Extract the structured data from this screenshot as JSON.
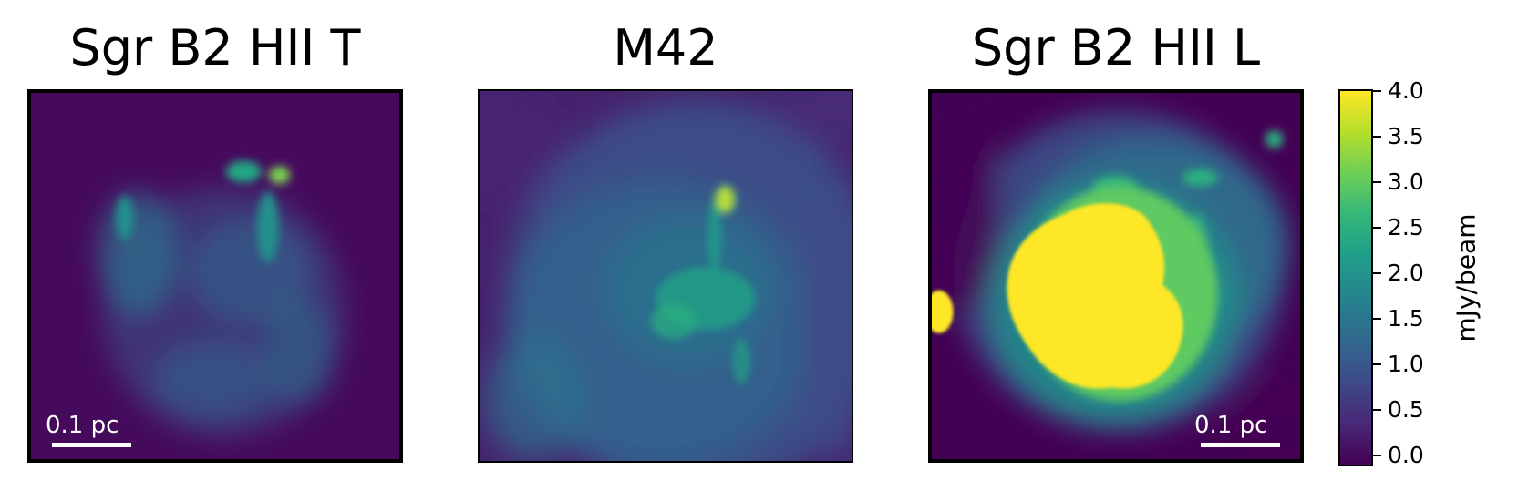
{
  "panels": [
    {
      "title": "Sgr B2 HII T",
      "scalebar": "0.1 pc"
    },
    {
      "title": "M42",
      "scalebar": ""
    },
    {
      "title": "Sgr B2 HII L",
      "scalebar": "0.1 pc"
    }
  ],
  "colorbar": {
    "label": "mJy/beam",
    "colormap": "viridis",
    "range": [
      -0.1,
      4.0
    ],
    "ticks": [
      "4.0",
      "3.5",
      "3.0",
      "2.5",
      "2.0",
      "1.5",
      "1.0",
      "0.5",
      "0.0"
    ]
  },
  "colors": {
    "low": "#440154",
    "high": "#fde725"
  }
}
